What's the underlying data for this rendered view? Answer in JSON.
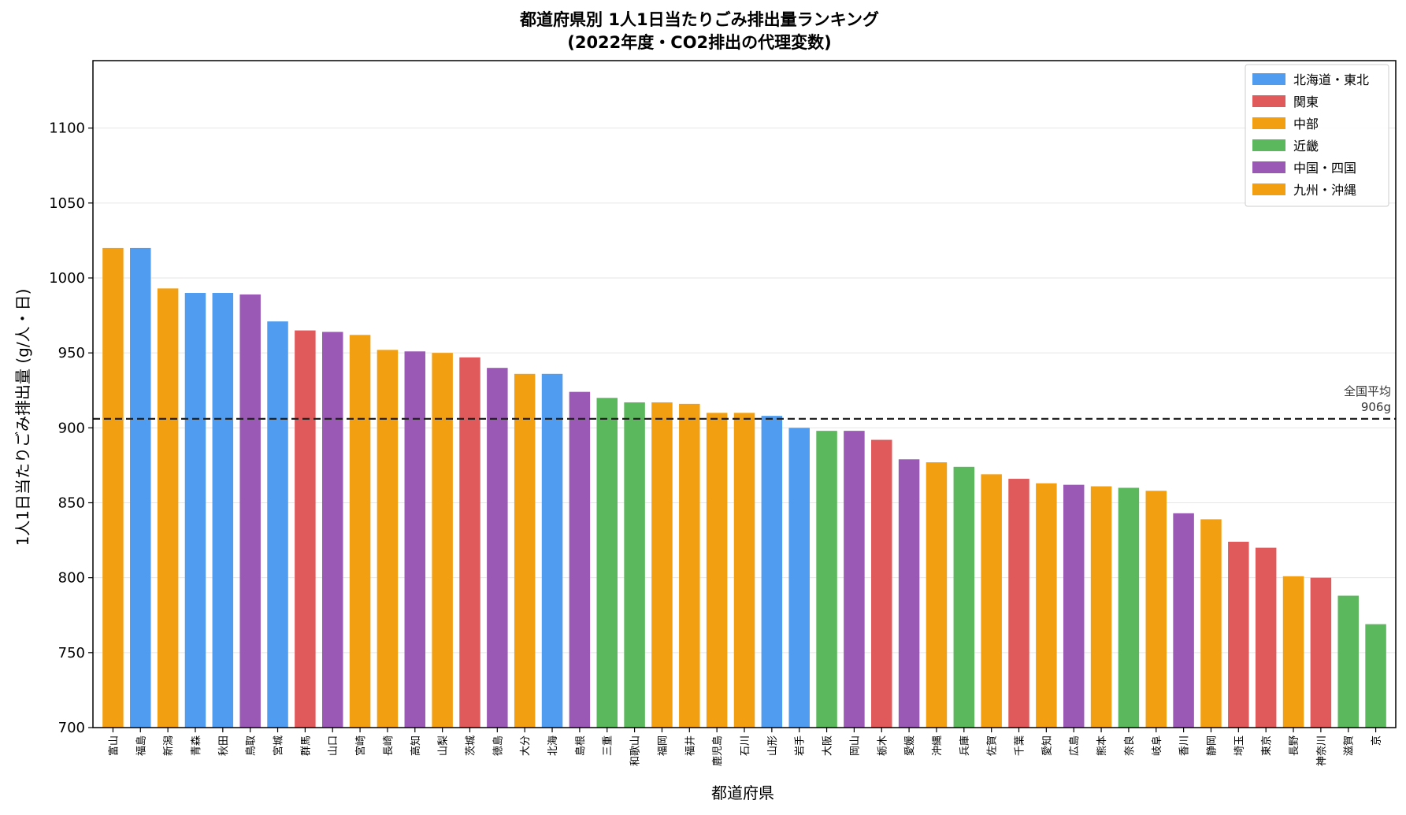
{
  "chart_data": {
    "type": "bar",
    "title": "都道府県別 1人1日当たりごみ排出量ランキング",
    "subtitle": "(2022年度・CO2排出の代理変数)",
    "xlabel": "都道府県",
    "ylabel": "1人1日当たりごみ排出量 (g/人・日)",
    "ylim": [
      700,
      1145
    ],
    "yticks": [
      700,
      750,
      800,
      850,
      900,
      950,
      1000,
      1050,
      1100
    ],
    "grid": "horizontal",
    "legend_position": "top-right",
    "regions": [
      {
        "key": "hokkaido_tohoku",
        "label": "北海道・東北",
        "color": "#4f9cf0"
      },
      {
        "key": "kanto",
        "label": "関東",
        "color": "#e05a5b"
      },
      {
        "key": "chubu",
        "label": "中部",
        "color": "#f29f12"
      },
      {
        "key": "kinki",
        "label": "近畿",
        "color": "#5cb85c"
      },
      {
        "key": "chugoku_shikoku",
        "label": "中国・四国",
        "color": "#9b59b6"
      },
      {
        "key": "kyushu_okinawa",
        "label": "九州・沖縄",
        "color": "#f29f12"
      }
    ],
    "categories": [
      "富山",
      "福島",
      "新潟",
      "青森",
      "秋田",
      "鳥取",
      "宮城",
      "群馬",
      "山口",
      "宮崎",
      "長崎",
      "高知",
      "山梨",
      "茨城",
      "徳島",
      "大分",
      "北海",
      "島根",
      "三重",
      "和歌山",
      "福岡",
      "福井",
      "鹿児島",
      "石川",
      "山形",
      "岩手",
      "大阪",
      "岡山",
      "栃木",
      "愛媛",
      "沖縄",
      "兵庫",
      "佐賀",
      "千葉",
      "愛知",
      "広島",
      "熊本",
      "奈良",
      "岐阜",
      "香川",
      "静岡",
      "埼玉",
      "東京",
      "長野",
      "神奈川",
      "滋賀",
      "京"
    ],
    "values": [
      1020,
      1020,
      993,
      990,
      990,
      989,
      971,
      965,
      964,
      962,
      952,
      951,
      950,
      947,
      940,
      936,
      936,
      924,
      920,
      917,
      917,
      916,
      910,
      910,
      908,
      900,
      898,
      898,
      892,
      879,
      877,
      874,
      869,
      866,
      863,
      862,
      861,
      860,
      858,
      843,
      839,
      824,
      820,
      801,
      800,
      788,
      769
    ],
    "region_of": [
      "chubu",
      "hokkaido_tohoku",
      "chubu",
      "hokkaido_tohoku",
      "hokkaido_tohoku",
      "chugoku_shikoku",
      "hokkaido_tohoku",
      "kanto",
      "chugoku_shikoku",
      "chubu",
      "chubu",
      "chugoku_shikoku",
      "chubu",
      "kanto",
      "chugoku_shikoku",
      "chubu",
      "hokkaido_tohoku",
      "chugoku_shikoku",
      "kinki",
      "kinki",
      "chubu",
      "chubu",
      "chubu",
      "chubu",
      "hokkaido_tohoku",
      "hokkaido_tohoku",
      "kinki",
      "chugoku_shikoku",
      "kanto",
      "chugoku_shikoku",
      "chubu",
      "kinki",
      "chubu",
      "kanto",
      "chubu",
      "chugoku_shikoku",
      "chubu",
      "kinki",
      "chubu",
      "chugoku_shikoku",
      "chubu",
      "kanto",
      "kanto",
      "chubu",
      "kanto",
      "kinki",
      "kinki"
    ],
    "reference_line": {
      "value": 906,
      "label_line1": "全国平均",
      "label_line2": "906g"
    }
  }
}
